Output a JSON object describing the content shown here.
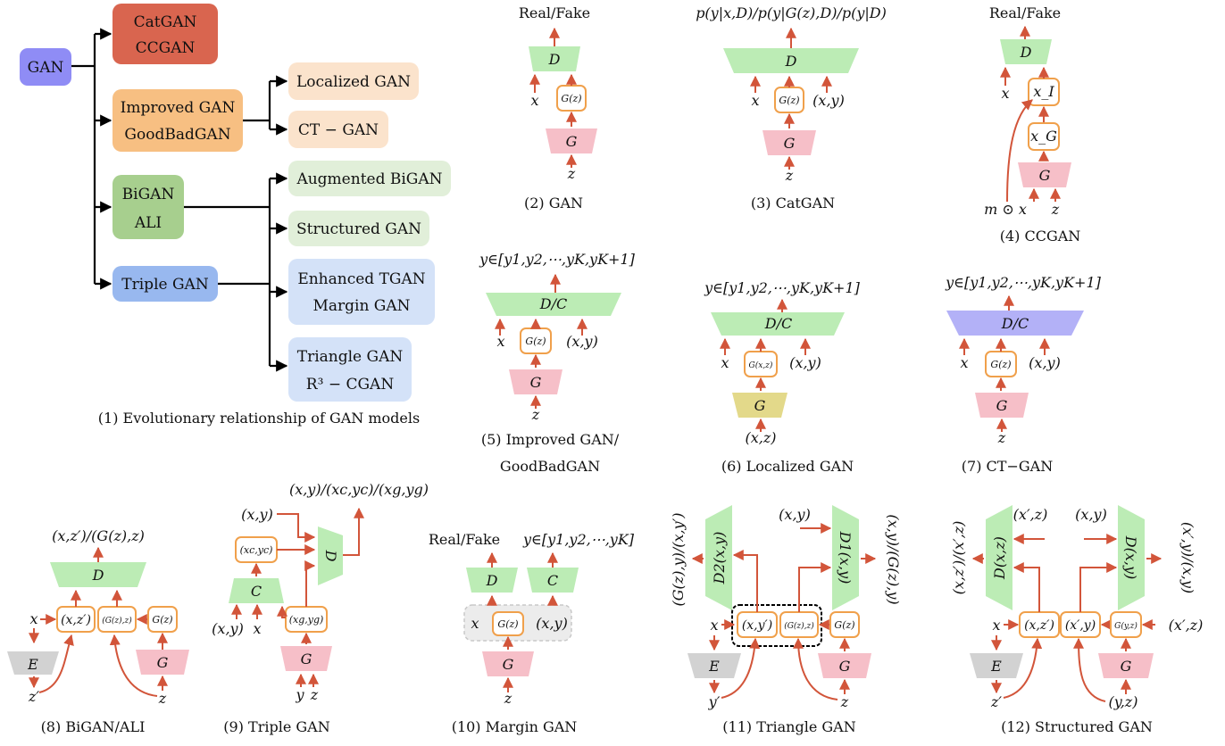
{
  "tree": {
    "root": "GAN",
    "catgan": "CatGAN",
    "ccgan": "CCGAN",
    "improved": "Improved GAN",
    "goodbad": "GoodBadGAN",
    "localized": "Localized GAN",
    "ctgan": "CT − GAN",
    "bigan": "BiGAN",
    "ali": "ALI",
    "augbigan": "Augmented BiGAN",
    "structured": "Structured GAN",
    "triple": "Triple GAN",
    "enhanced": "Enhanced TGAN",
    "margin": "Margin GAN",
    "triangle": "Triangle GAN",
    "r3cgan": "R³ − CGAN",
    "caption": "(1) Evolutionary relationship of GAN models"
  },
  "panels": {
    "p2": {
      "out": "Real/Fake",
      "D": "D",
      "x": "x",
      "gz": "G(z)",
      "G": "G",
      "z": "z",
      "caption": "(2) GAN"
    },
    "p3": {
      "out": "p(y|x,D)/p(y|G(z),D)/p(y|D)",
      "D": "D",
      "x": "x",
      "gz": "G(z)",
      "xy": "(x,y)",
      "G": "G",
      "z": "z",
      "caption": "(3) CatGAN"
    },
    "p4": {
      "out": "Real/Fake",
      "D": "D",
      "x": "x",
      "xi": "x_I",
      "xg": "x_G",
      "G": "G",
      "mx": "m ⊙ x",
      "z": "z",
      "caption": "(4) CCGAN"
    },
    "p5": {
      "out": "y∈[y1,y2,⋯,yK,yK+1]",
      "D": "D/C",
      "x": "x",
      "gz": "G(z)",
      "xy": "(x,y)",
      "G": "G",
      "z": "z",
      "caption1": "(5) Improved GAN/",
      "caption2": "GoodBadGAN"
    },
    "p6": {
      "out": "y∈[y1,y2,⋯,yK,yK+1]",
      "D": "D/C",
      "x": "x",
      "gxz": "G(x,z)",
      "xy": "(x,y)",
      "G": "G",
      "xz": "(x,z)",
      "caption": "(6) Localized GAN"
    },
    "p7": {
      "out": "y∈[y1,y2,⋯,yK,yK+1]",
      "D": "D/C",
      "x": "x",
      "gz": "G(z)",
      "xy": "(x,y)",
      "G": "G",
      "z": "z",
      "caption": "(7) CT−GAN"
    },
    "p8": {
      "out": "(x,z′)/(G(z),z)",
      "D": "D",
      "x": "x",
      "xz": "(x,z′)",
      "gzz": "(G(z),z)",
      "gz": "G(z)",
      "E": "E",
      "G": "G",
      "zp": "z′",
      "z": "z",
      "caption": "(8) BiGAN/ALI"
    },
    "p9": {
      "out": "(x,y)/(xc,yc)/(xg,yg)",
      "xy_top": "(x,y)",
      "xcyc": "(xc,yc)",
      "D": "D",
      "C": "C",
      "xgyg": "(xg,yg)",
      "G": "G",
      "xy_in": "(x,y)",
      "x_in": "x",
      "y": "y",
      "z": "z",
      "caption": "(9) Triple GAN"
    },
    "p10": {
      "out1": "Real/Fake",
      "out2": "y∈[y1,y2,⋯,yK]",
      "D": "D",
      "C": "C",
      "x": "x",
      "gz": "G(z)",
      "xy": "(x,y)",
      "G": "G",
      "z": "z",
      "caption": "(10) Margin GAN"
    },
    "p11": {
      "left_out": "(G(z),y)/(x,y′)",
      "right_out": "(x,y)/(G(z),y)",
      "D2": "D2(x,y)",
      "D1": "D1(x,y)",
      "xy_top": "(x,y)",
      "x": "x",
      "xyp": "(x,y′)",
      "gzz": "(G(z),z)",
      "gz": "G(z)",
      "E": "E",
      "G": "G",
      "yp": "y′",
      "z": "z",
      "caption": "(11) Triangle GAN"
    },
    "p12": {
      "left_out": "(x,z′)/(x′,z)",
      "right_out": "(x′,y)/(x,y)",
      "Dl": "D(x,z)",
      "Dr": "D(x,y)",
      "xpz": "(x′,z)",
      "xy_top": "(x,y)",
      "x": "x",
      "xzp": "(x,z′)",
      "xpy": "(x′,y)",
      "gyz": "G(y,z)",
      "xpz_r": "(x′,z)",
      "E": "E",
      "G": "G",
      "zp": "z′",
      "yz": "(y,z)",
      "caption": "(12) Structured GAN"
    }
  },
  "colors": {
    "root": "#8f8cf5",
    "red": "#d9654f",
    "orange": "#f7bf82",
    "orange_light": "#fbe3cc",
    "green": "#a7cf8e",
    "green_light": "#e1efd9",
    "blue": "#98b8ef",
    "blue_light": "#d4e2f8",
    "disc": "#bcecb5",
    "gen": "#f6bfc8",
    "enc": "#d2d2d2",
    "gen_yellow": "#e3d98a",
    "disc_purple": "#b3b1f7",
    "arrow": "#d2553a",
    "node_border": "#f0a04b"
  }
}
